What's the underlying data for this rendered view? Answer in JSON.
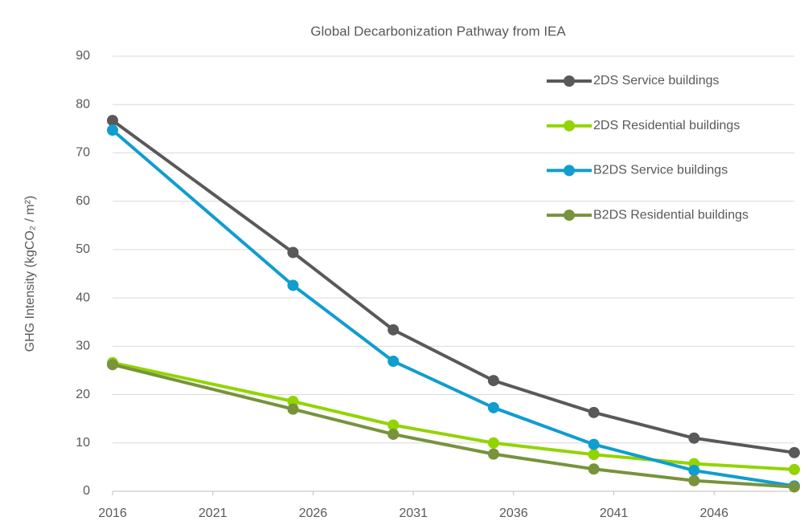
{
  "chart_data": {
    "type": "line",
    "title": "Global Decarbonization Pathway from IEA",
    "y_label": "GHG Intensity (kgCO₂ / m²)",
    "x": [
      2016,
      2025,
      2030,
      2035,
      2040,
      2045,
      2050
    ],
    "xlim": [
      2016,
      2050
    ],
    "xticks": [
      2016,
      2021,
      2026,
      2031,
      2036,
      2041,
      2046
    ],
    "ylim": [
      0,
      90
    ],
    "yticks": [
      0,
      10,
      20,
      30,
      40,
      50,
      60,
      70,
      80,
      90
    ],
    "grid": true,
    "legend": "upper right",
    "series": [
      {
        "name": "2DS Service buildings",
        "color": "#595959",
        "values": [
          76.7,
          49.4,
          33.4,
          22.9,
          16.3,
          11.0,
          8.0
        ]
      },
      {
        "name": "2DS Residential buildings",
        "color": "#92d400",
        "values": [
          26.6,
          18.6,
          13.7,
          10.0,
          7.6,
          5.7,
          4.5
        ]
      },
      {
        "name": "B2DS Service buildings",
        "color": "#109dd0",
        "values": [
          74.7,
          42.6,
          26.9,
          17.3,
          9.7,
          4.3,
          1.1
        ]
      },
      {
        "name": "B2DS Residential buildings",
        "color": "#77933c",
        "values": [
          26.2,
          17.0,
          11.8,
          7.7,
          4.6,
          2.2,
          0.9
        ]
      }
    ]
  }
}
